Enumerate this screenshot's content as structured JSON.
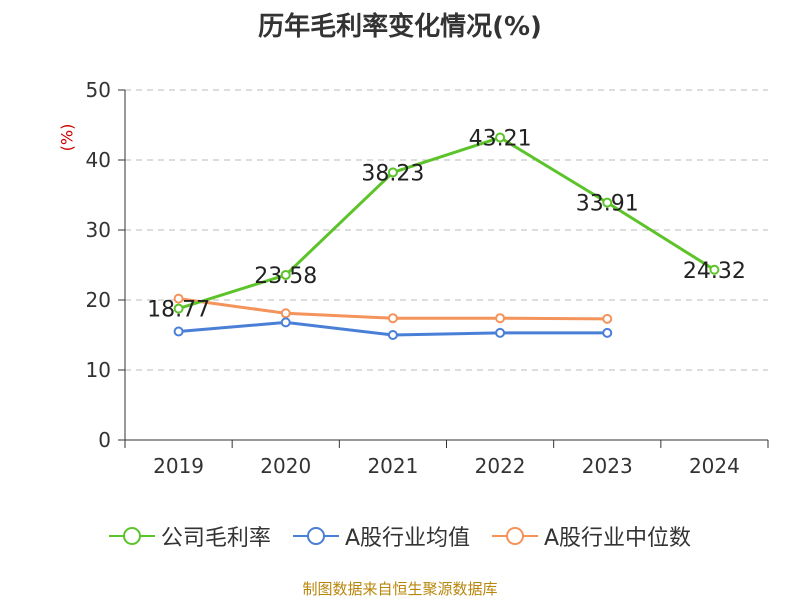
{
  "chart_data": {
    "type": "line",
    "title": "历年毛利率变化情况(%)",
    "ylabel": "(%)",
    "xlabel": "",
    "categories": [
      "2019",
      "2020",
      "2021",
      "2022",
      "2023",
      "2024"
    ],
    "ylim": [
      0,
      50
    ],
    "yticks": [
      0,
      10,
      20,
      30,
      40,
      50
    ],
    "grid": true,
    "legend_position": "bottom",
    "series": [
      {
        "name": "公司毛利率",
        "color": "#5cc42a",
        "values": [
          18.77,
          23.58,
          38.23,
          43.21,
          33.91,
          24.32
        ],
        "labels": [
          "18.77",
          "23.58",
          "38.23",
          "43.21",
          "33.91",
          "24.32"
        ]
      },
      {
        "name": "A股行业均值",
        "color": "#4a7fd8",
        "values": [
          15.5,
          16.8,
          15.0,
          15.3,
          15.3,
          null
        ]
      },
      {
        "name": "A股行业中位数",
        "color": "#f4935a",
        "values": [
          20.2,
          18.1,
          17.4,
          17.4,
          17.3,
          null
        ]
      }
    ]
  },
  "source": "制图数据来自恒生聚源数据库"
}
